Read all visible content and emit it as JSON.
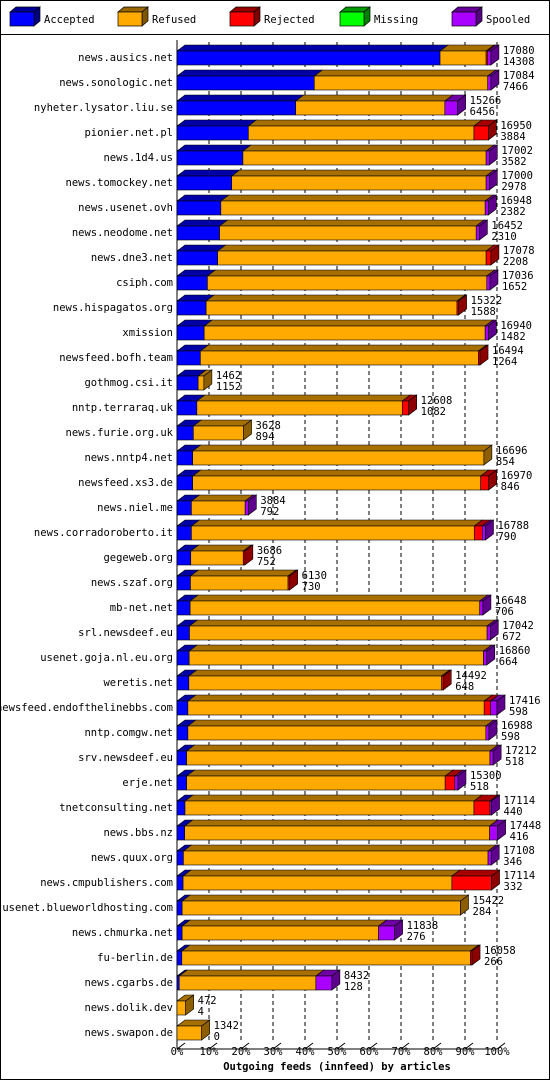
{
  "chart_data": {
    "type": "bar",
    "orientation": "horizontal",
    "stacked": true,
    "x_label": "Outgoing feeds (innfeed) by articles",
    "categories": [
      "news.ausics.net",
      "news.sonologic.net",
      "nyheter.lysator.liu.se",
      "pionier.net.pl",
      "news.1d4.us",
      "news.tomockey.net",
      "news.usenet.ovh",
      "news.neodome.net",
      "news.dne3.net",
      "csiph.com",
      "news.hispagatos.org",
      "xmission",
      "newsfeed.bofh.team",
      "gothmog.csi.it",
      "nntp.terraraq.uk",
      "news.furie.org.uk",
      "news.nntp4.net",
      "newsfeed.xs3.de",
      "news.niel.me",
      "news.corradoroberto.it",
      "gegeweb.org",
      "news.szaf.org",
      "mb-net.net",
      "srl.newsdeef.eu",
      "usenet.goja.nl.eu.org",
      "weretis.net",
      "newsfeed.endofthelinebbs.com",
      "nntp.comgw.net",
      "srv.newsdeef.eu",
      "erje.net",
      "tnetconsulting.net",
      "news.bbs.nz",
      "news.quux.org",
      "news.cmpublishers.com",
      "usenet.blueworldhosting.com",
      "news.chmurka.net",
      "fu-berlin.de",
      "news.cgarbs.de",
      "news.dolik.dev",
      "news.swapon.de"
    ],
    "series": [
      {
        "name": "Accepted",
        "color": "#0000ff",
        "values": [
          82.2,
          42.9,
          37.1,
          22.3,
          20.6,
          17.1,
          13.7,
          13.3,
          12.7,
          9.5,
          9.1,
          8.5,
          7.3,
          6.6,
          6.2,
          5.1,
          4.9,
          4.9,
          4.5,
          4.5,
          4.3,
          4.2,
          4.1,
          3.9,
          3.8,
          3.7,
          3.4,
          3.4,
          3.0,
          3.0,
          2.5,
          2.4,
          2.0,
          1.9,
          1.6,
          1.6,
          1.5,
          0.7,
          0.0,
          0.0
        ]
      },
      {
        "name": "Refused",
        "color": "#ffaa00",
        "values": [
          14.4,
          54.2,
          46.6,
          70.5,
          76.0,
          79.5,
          82.6,
          80.2,
          83.9,
          87.3,
          78.4,
          87.8,
          86.9,
          1.8,
          64.2,
          15.7,
          91.0,
          90.0,
          16.8,
          88.4,
          16.4,
          30.5,
          90.5,
          93.0,
          92.0,
          79.0,
          92.6,
          93.1,
          94.8,
          80.8,
          90.3,
          95.3,
          95.2,
          84.0,
          87.0,
          61.4,
          90.2,
          42.7,
          2.7,
          7.7
        ]
      },
      {
        "name": "Rejected",
        "color": "#ff0000",
        "values": [
          0.5,
          0,
          0,
          4.5,
          0,
          0,
          0,
          0,
          1.5,
          0,
          0.5,
          0,
          0.5,
          0,
          2.0,
          0,
          0,
          2.5,
          0,
          2.5,
          0.5,
          0.5,
          0,
          0,
          0,
          0.5,
          2.0,
          0,
          0,
          3.0,
          5.0,
          0,
          0,
          12.4,
          0,
          0,
          0.5,
          0,
          0,
          0
        ]
      },
      {
        "name": "Missing",
        "color": "#00ff00",
        "values": [
          0,
          0,
          0,
          0,
          0,
          0,
          0,
          0,
          0,
          0,
          0,
          0,
          0,
          0,
          0,
          0,
          0,
          0,
          0,
          0,
          0,
          0,
          0,
          0,
          0,
          0,
          0,
          0,
          0,
          0,
          0,
          0,
          0,
          0,
          0,
          0,
          0,
          0,
          0,
          0
        ]
      },
      {
        "name": "Spooled",
        "color": "#aa00ff",
        "values": [
          1.0,
          1.0,
          4.0,
          0,
          1.0,
          1.0,
          1.0,
          1.0,
          0,
          1.0,
          0,
          1.0,
          0,
          0,
          0,
          0,
          0,
          0,
          1.0,
          1.0,
          0,
          0,
          1.0,
          1.0,
          1.0,
          0,
          2.0,
          1.0,
          1.0,
          1.0,
          0.5,
          2.5,
          1.0,
          0,
          0,
          5.0,
          0,
          5.0,
          0,
          0
        ]
      }
    ],
    "offered": [
      17080,
      17084,
      15266,
      16950,
      17002,
      17000,
      16948,
      16452,
      17078,
      17036,
      15322,
      16940,
      16494,
      1462,
      12608,
      3628,
      16696,
      16970,
      3884,
      16788,
      3686,
      6130,
      16648,
      17042,
      16860,
      14492,
      17416,
      16988,
      17212,
      15300,
      17114,
      17448,
      17108,
      17114,
      15422,
      11838,
      16058,
      8432,
      472,
      1342
    ],
    "accepted": [
      14308,
      7466,
      6456,
      3884,
      3582,
      2978,
      2382,
      2310,
      2208,
      1652,
      1588,
      1482,
      1264,
      1152,
      1082,
      894,
      854,
      846,
      792,
      790,
      752,
      730,
      706,
      672,
      664,
      648,
      598,
      598,
      518,
      518,
      440,
      416,
      346,
      332,
      284,
      276,
      266,
      128,
      4,
      0
    ],
    "xlim": [
      0,
      100
    ],
    "xticks": [
      {
        "value": 0,
        "label": "0%"
      },
      {
        "value": 10,
        "label": "10%"
      },
      {
        "value": 20,
        "label": "20%"
      },
      {
        "value": 30,
        "label": "30%"
      },
      {
        "value": 40,
        "label": "40%"
      },
      {
        "value": 50,
        "label": "50%"
      },
      {
        "value": 60,
        "label": "60%"
      },
      {
        "value": 70,
        "label": "70%"
      },
      {
        "value": 80,
        "label": "80%"
      },
      {
        "value": 90,
        "label": "90%"
      },
      {
        "value": 100,
        "label": "100%"
      }
    ],
    "grid": true,
    "legend": "top"
  }
}
